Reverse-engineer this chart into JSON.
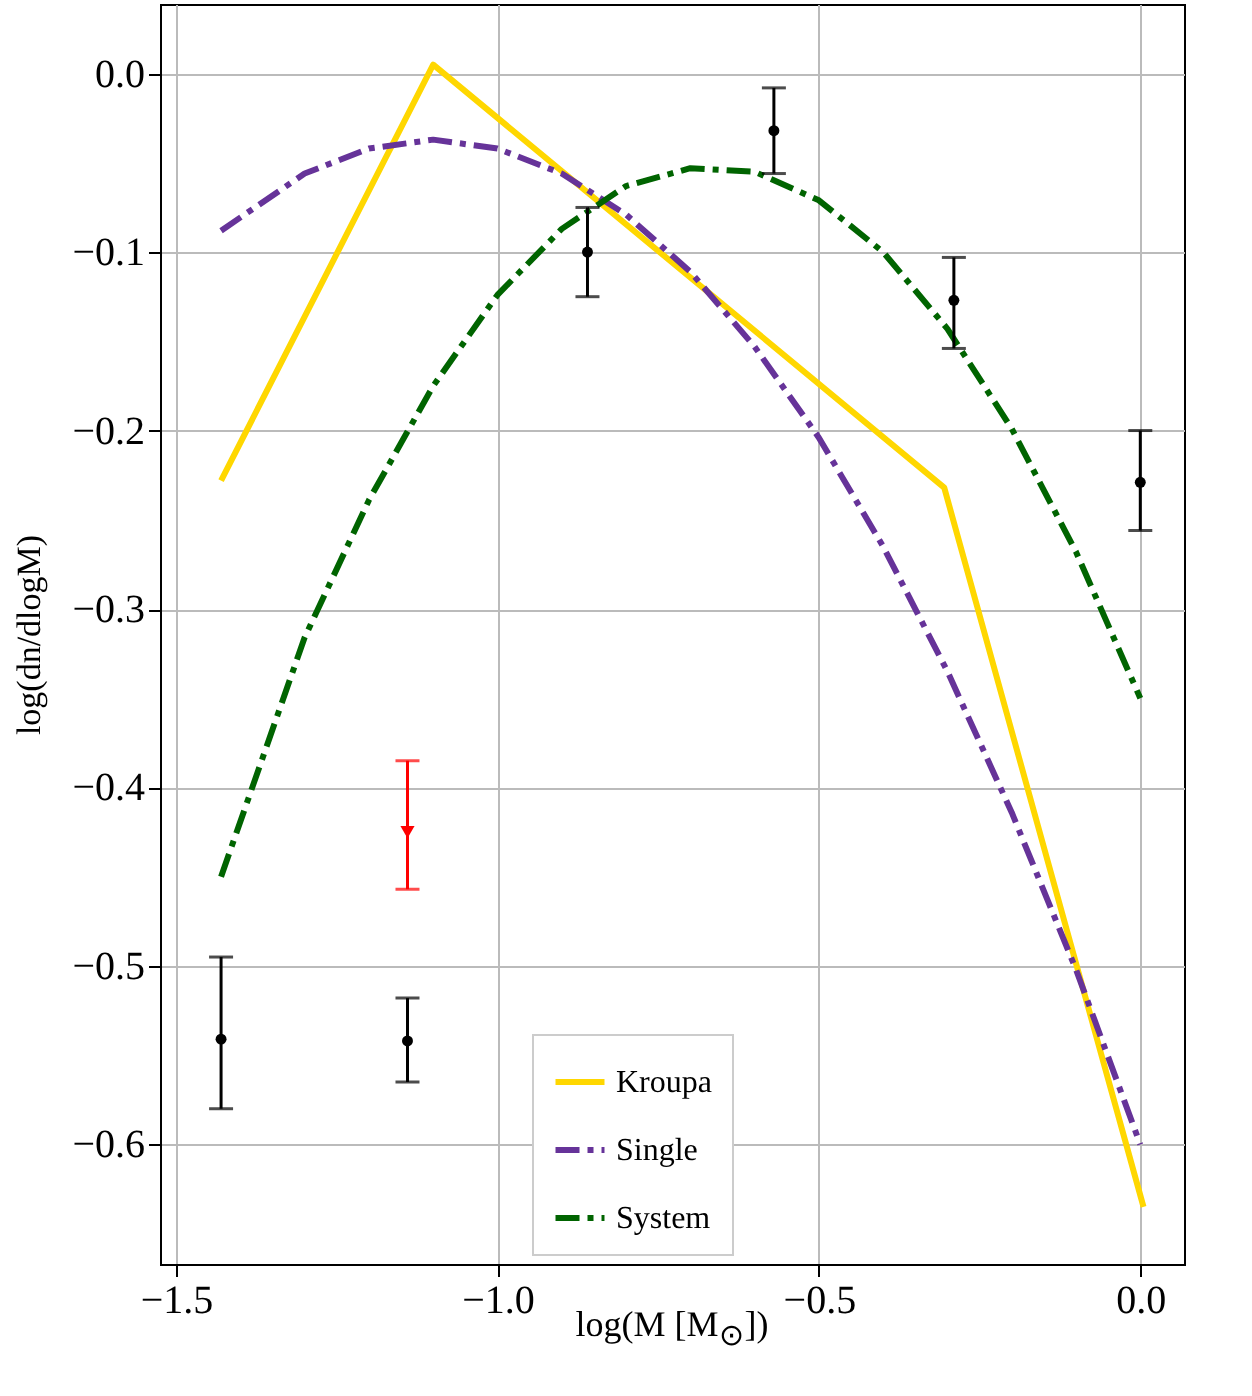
{
  "chart_data": {
    "type": "line",
    "xlabel": "log(M [M$_{⊙}$])",
    "ylabel": "log(dn/dlogM)",
    "xlim": [
      -1.525,
      0.068
    ],
    "ylim": [
      -0.667,
      0.039
    ],
    "xticks": [
      {
        "value": -1.5,
        "label": "−1.5"
      },
      {
        "value": -1.0,
        "label": "−1.0"
      },
      {
        "value": -0.5,
        "label": "−0.5"
      },
      {
        "value": 0.0,
        "label": "0.0"
      }
    ],
    "yticks": [
      {
        "value": 0.0,
        "label": "0.0"
      },
      {
        "value": -0.1,
        "label": "−0.1"
      },
      {
        "value": -0.2,
        "label": "−0.2"
      },
      {
        "value": -0.3,
        "label": "−0.3"
      },
      {
        "value": -0.4,
        "label": "−0.4"
      },
      {
        "value": -0.5,
        "label": "−0.5"
      },
      {
        "value": -0.6,
        "label": "−0.6"
      }
    ],
    "grid": true,
    "legend": "bottom",
    "series": [
      {
        "name": "Kroupa",
        "color": "#ffd700",
        "line_style": "solid",
        "x": [
          -1.43,
          -1.1,
          -0.305,
          0.005
        ],
        "values": [
          -0.228,
          0.005,
          -0.232,
          -0.635
        ]
      },
      {
        "name": "Single",
        "color": "#663399",
        "line_style": "dashed",
        "x": [
          -1.43,
          -1.3,
          -1.2,
          -1.1,
          -1.0,
          -0.9,
          -0.8,
          -0.7,
          -0.6,
          -0.5,
          -0.4,
          -0.3,
          -0.2,
          -0.1,
          0.0
        ],
        "values": [
          -0.088,
          -0.056,
          -0.042,
          -0.037,
          -0.042,
          -0.056,
          -0.079,
          -0.111,
          -0.153,
          -0.204,
          -0.265,
          -0.335,
          -0.414,
          -0.502,
          -0.6
        ]
      },
      {
        "name": "System",
        "color": "#006400",
        "line_style": "dashed",
        "x": [
          -1.43,
          -1.3,
          -1.2,
          -1.1,
          -1.0,
          -0.9,
          -0.8,
          -0.7,
          -0.6,
          -0.5,
          -0.4,
          -0.3,
          -0.2,
          -0.1,
          0.0
        ],
        "values": [
          -0.45,
          -0.316,
          -0.239,
          -0.175,
          -0.124,
          -0.087,
          -0.063,
          -0.053,
          -0.055,
          -0.071,
          -0.1,
          -0.143,
          -0.199,
          -0.268,
          -0.35
        ]
      },
      {
        "type": "scatter",
        "color": "#000000",
        "marker": "circle",
        "x": [
          -1.43,
          -1.14,
          -0.86,
          -0.57,
          -0.29,
          0.0
        ],
        "values": [
          -0.541,
          -0.542,
          -0.1,
          -0.032,
          -0.127,
          -0.229
        ],
        "errors": [
          [
            -0.58,
            -0.495
          ],
          [
            -0.565,
            -0.518
          ],
          [
            -0.125,
            -0.075
          ],
          [
            -0.056,
            -0.008
          ],
          [
            -0.154,
            -0.103
          ],
          [
            -0.256,
            -0.2
          ]
        ]
      },
      {
        "type": "scatter",
        "color": "#ff0000",
        "marker": "triangle",
        "x": [
          -1.14
        ],
        "values": [
          -0.425
        ],
        "errors": [
          [
            -0.457,
            -0.385
          ]
        ]
      }
    ]
  }
}
